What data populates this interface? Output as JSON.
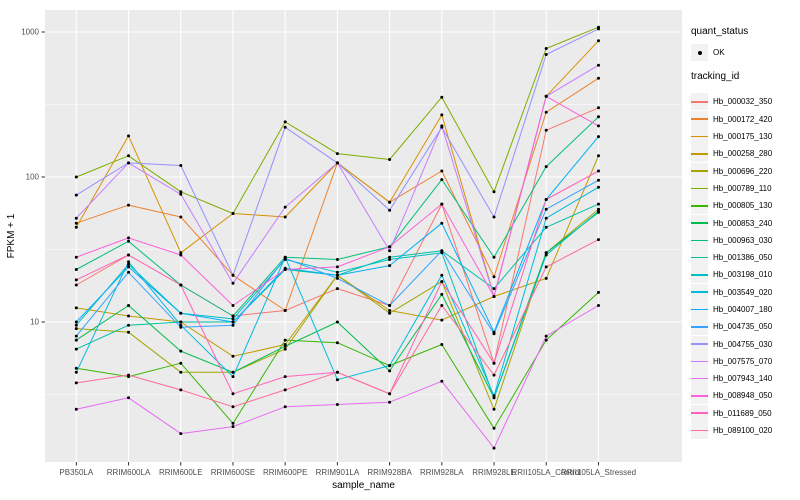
{
  "chart_data": {
    "type": "line",
    "title": "",
    "xlabel": "sample_name",
    "ylabel": "FPKM + 1",
    "y_scale": "log10",
    "yticks": [
      1000,
      100,
      10
    ],
    "ylim": [
      1.3,
      1420
    ],
    "grid": "major-and-minor-white-on-gray",
    "legend_position": "right",
    "point_symbol_color": "#000000",
    "categories": [
      "PB350LA",
      "RRIM600LA",
      "RRIM600LE",
      "RRIM600SE",
      "RRIM600PE",
      "RRIM901LA",
      "RRIM928BA",
      "RRIM928LA",
      "RRIM928LE",
      "RRII105LA_Control",
      "RRII105LA_Stressed"
    ],
    "series": [
      {
        "name": "Hb_000032_350",
        "color": "#F8766D",
        "values": [
          18,
          29,
          18,
          11,
          12,
          17,
          13,
          65,
          5.2,
          210,
          300
        ]
      },
      {
        "name": "Hb_000172_420",
        "color": "#EA8331",
        "values": [
          48,
          64,
          53,
          21,
          12,
          125,
          67,
          110,
          20.5,
          280,
          480
        ]
      },
      {
        "name": "Hb_000175_130",
        "color": "#D89000",
        "values": [
          45,
          192,
          30,
          56,
          53,
          125,
          67,
          268,
          15,
          360,
          870
        ]
      },
      {
        "name": "Hb_000258_280",
        "color": "#C09B00",
        "values": [
          12.5,
          11,
          10,
          5.8,
          7,
          21,
          12,
          10.3,
          15,
          20,
          140
        ]
      },
      {
        "name": "Hb_000696_220",
        "color": "#A3A500",
        "values": [
          9,
          8.5,
          4.5,
          4.5,
          6.5,
          21,
          11.5,
          19,
          2.5,
          30,
          60
        ]
      },
      {
        "name": "Hb_000789_110",
        "color": "#7CAE00",
        "values": [
          100,
          140,
          79,
          56,
          240,
          145,
          132,
          355,
          79,
          770,
          1080
        ]
      },
      {
        "name": "Hb_000805_130",
        "color": "#39B600",
        "values": [
          4.8,
          4.2,
          5.2,
          2.0,
          7.5,
          7.2,
          5.0,
          7.0,
          1.85,
          7.5,
          16
        ]
      },
      {
        "name": "Hb_000853_240",
        "color": "#00BB4E",
        "values": [
          7.5,
          13,
          6.3,
          4.5,
          6.8,
          10,
          4.6,
          15.5,
          3.0,
          30,
          57
        ]
      },
      {
        "name": "Hb_000963_030",
        "color": "#00BF7D",
        "values": [
          23,
          36,
          18,
          11,
          28,
          27,
          33,
          96,
          28,
          118,
          260
        ]
      },
      {
        "name": "Hb_001386_050",
        "color": "#00C1A3",
        "values": [
          6.5,
          9.5,
          10,
          10,
          23,
          21,
          28,
          31,
          17,
          45,
          65
        ]
      },
      {
        "name": "Hb_003198_010",
        "color": "#00BFC4",
        "values": [
          9.5,
          25,
          11.5,
          10.5,
          27,
          22,
          27,
          30,
          3.0,
          29,
          58
        ]
      },
      {
        "name": "Hb_003549_020",
        "color": "#00BAE0",
        "values": [
          4.5,
          26,
          9.5,
          4.2,
          28,
          4.0,
          5.0,
          21,
          3.1,
          52,
          85
        ]
      },
      {
        "name": "Hb_004007_180",
        "color": "#00B0F6",
        "values": [
          10,
          24,
          11.5,
          10,
          23.5,
          21,
          24.5,
          48,
          8.5,
          70,
          190
        ]
      },
      {
        "name": "Hb_004735_050",
        "color": "#35A2FF",
        "values": [
          8,
          22,
          9.2,
          9.5,
          27.5,
          20,
          13,
          31,
          8.3,
          60,
          95
        ]
      },
      {
        "name": "Hb_004755_030",
        "color": "#9590FF",
        "values": [
          75,
          125,
          120,
          21,
          220,
          125,
          59,
          220,
          53,
          700,
          1050
        ]
      },
      {
        "name": "Hb_007575_070",
        "color": "#C77CFF",
        "values": [
          52,
          125,
          76,
          18.5,
          62,
          125,
          31,
          225,
          15,
          360,
          590
        ]
      },
      {
        "name": "Hb_007943_140",
        "color": "#E76BF3",
        "values": [
          2.5,
          3.0,
          1.7,
          1.9,
          2.6,
          2.7,
          2.8,
          3.9,
          1.35,
          8,
          13
        ]
      },
      {
        "name": "Hb_008948_050",
        "color": "#FA62DB",
        "values": [
          28,
          38,
          29,
          13,
          23,
          24,
          33,
          65,
          15,
          360,
          225
        ]
      },
      {
        "name": "Hb_011689_050",
        "color": "#FF62BC",
        "values": [
          19.5,
          29,
          18,
          3.2,
          4.2,
          4.5,
          3.2,
          19,
          5.2,
          70,
          110
        ]
      },
      {
        "name": "Hb_089100_020",
        "color": "#FF6A98",
        "values": [
          3.8,
          4.3,
          3.4,
          2.6,
          3.4,
          4.5,
          3.2,
          13,
          4.3,
          24,
          37
        ]
      }
    ]
  },
  "legend": {
    "quant_status_title": "quant_status",
    "ok_label": "OK",
    "tracking_id_title": "tracking_id"
  },
  "colors": {
    "panel_bg": "#EBEBEB",
    "grid": "#FFFFFF",
    "legend_key_bg": "#F2F2F2",
    "tick_label": "#4D4D4D",
    "tick_mark": "#333333",
    "axis_title": "#000000"
  }
}
